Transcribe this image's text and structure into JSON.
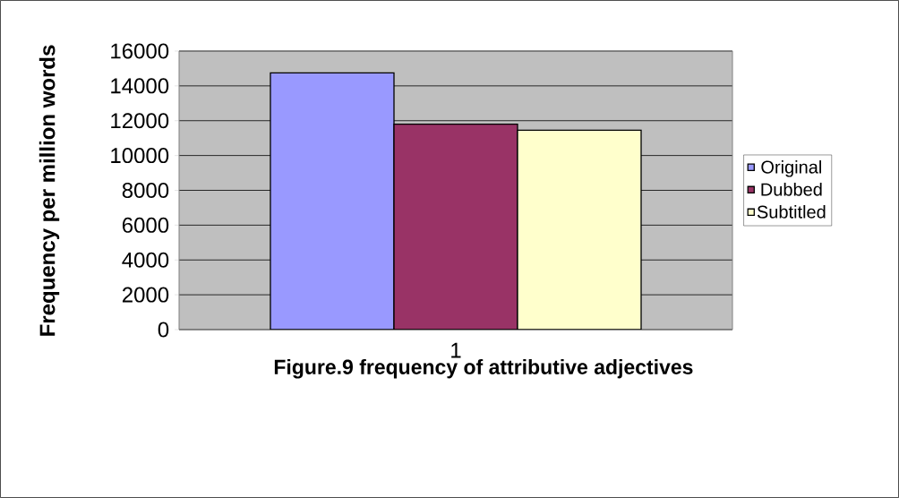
{
  "chart_data": {
    "type": "bar",
    "title": "Figure.9 frequency of attributive adjectives",
    "ylabel": "Frequency per million words",
    "categories": [
      "1"
    ],
    "series": [
      {
        "name": "Original",
        "color": "#9999ff",
        "values": [
          14750
        ]
      },
      {
        "name": "Dubbed",
        "color": "#993366",
        "values": [
          11800
        ]
      },
      {
        "name": "Subtitled",
        "color": "#ffffcc",
        "values": [
          11450
        ]
      }
    ],
    "ylim": [
      0,
      16000
    ],
    "yticks": [
      0,
      2000,
      4000,
      6000,
      8000,
      10000,
      12000,
      14000,
      16000
    ],
    "grid": "y",
    "legend": "right"
  }
}
